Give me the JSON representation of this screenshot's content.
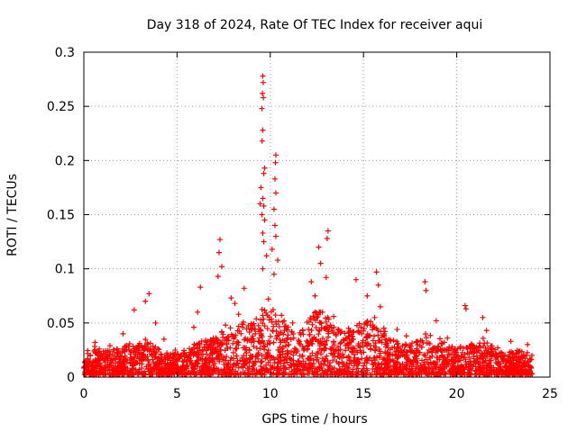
{
  "chart_data": {
    "type": "scatter",
    "title": "Day 318 of 2024, Rate Of TEC Index for receiver aqui",
    "xlabel": "GPS time / hours",
    "ylabel": "ROTI / TECUs",
    "xlim": [
      0,
      25
    ],
    "ylim": [
      0,
      0.3
    ],
    "xticks": [
      0,
      5,
      10,
      15,
      20,
      25
    ],
    "xtick_labels": [
      "0",
      "5",
      "10",
      "15",
      "20",
      "25"
    ],
    "yticks": [
      0,
      0.05,
      0.1,
      0.15,
      0.2,
      0.25,
      0.3
    ],
    "ytick_labels": [
      "0",
      "0.05",
      "0.1",
      "0.15",
      "0.2",
      "0.25",
      "0.3"
    ],
    "grid": true,
    "marker": "+",
    "color": "#ff0000",
    "series": [
      {
        "name": "ROTI",
        "points": [
          [
            9.6,
            0.278
          ],
          [
            9.62,
            0.272
          ],
          [
            9.58,
            0.262
          ],
          [
            9.63,
            0.258
          ],
          [
            9.55,
            0.248
          ],
          [
            9.6,
            0.228
          ],
          [
            9.56,
            0.218
          ],
          [
            10.3,
            0.205
          ],
          [
            10.28,
            0.198
          ],
          [
            9.7,
            0.193
          ],
          [
            9.65,
            0.188
          ],
          [
            10.25,
            0.183
          ],
          [
            9.5,
            0.175
          ],
          [
            10.3,
            0.17
          ],
          [
            9.6,
            0.165
          ],
          [
            9.45,
            0.16
          ],
          [
            9.65,
            0.158
          ],
          [
            10.2,
            0.155
          ],
          [
            9.55,
            0.15
          ],
          [
            9.7,
            0.145
          ],
          [
            10.25,
            0.14
          ],
          [
            9.6,
            0.133
          ],
          [
            10.3,
            0.13
          ],
          [
            13.1,
            0.135
          ],
          [
            13.05,
            0.128
          ],
          [
            7.3,
            0.127
          ],
          [
            9.65,
            0.125
          ],
          [
            12.6,
            0.12
          ],
          [
            10.1,
            0.118
          ],
          [
            7.25,
            0.115
          ],
          [
            9.8,
            0.112
          ],
          [
            10.4,
            0.108
          ],
          [
            12.7,
            0.105
          ],
          [
            7.4,
            0.102
          ],
          [
            9.6,
            0.1
          ],
          [
            15.7,
            0.097
          ],
          [
            10.2,
            0.095
          ],
          [
            7.2,
            0.093
          ],
          [
            13.0,
            0.092
          ],
          [
            14.6,
            0.09
          ],
          [
            12.2,
            0.088
          ],
          [
            18.3,
            0.088
          ],
          [
            15.8,
            0.085
          ],
          [
            6.25,
            0.083
          ],
          [
            8.6,
            0.082
          ],
          [
            18.35,
            0.08
          ],
          [
            3.5,
            0.077
          ],
          [
            15.2,
            0.075
          ],
          [
            12.4,
            0.075
          ],
          [
            7.9,
            0.073
          ],
          [
            9.9,
            0.072
          ],
          [
            3.3,
            0.07
          ],
          [
            8.1,
            0.068
          ],
          [
            20.45,
            0.066
          ],
          [
            15.9,
            0.065
          ],
          [
            20.5,
            0.063
          ],
          [
            2.7,
            0.062
          ],
          [
            6.1,
            0.06
          ],
          [
            12.8,
            0.06
          ],
          [
            8.3,
            0.058
          ],
          [
            10.6,
            0.057
          ],
          [
            13.4,
            0.056
          ],
          [
            15.6,
            0.055
          ],
          [
            21.4,
            0.055
          ],
          [
            18.9,
            0.052
          ],
          [
            3.85,
            0.05
          ],
          [
            11.2,
            0.05
          ],
          [
            7.6,
            0.048
          ],
          [
            5.9,
            0.046
          ],
          [
            14.2,
            0.045
          ],
          [
            16.8,
            0.044
          ],
          [
            21.6,
            0.043
          ],
          [
            2.1,
            0.04
          ],
          [
            9.2,
            0.04
          ],
          [
            12.1,
            0.039
          ],
          [
            17.3,
            0.038
          ],
          [
            19.5,
            0.036
          ],
          [
            4.3,
            0.035
          ],
          [
            22.9,
            0.033
          ],
          [
            0.6,
            0.032
          ],
          [
            23.8,
            0.03
          ],
          [
            1.4,
            0.029
          ],
          [
            6.8,
            0.028
          ],
          [
            16.2,
            0.028
          ],
          [
            22.2,
            0.027
          ],
          [
            4.9,
            0.025
          ],
          [
            19.9,
            0.025
          ],
          [
            11.6,
            0.03
          ],
          [
            13.8,
            0.032
          ],
          [
            14.9,
            0.04
          ]
        ],
        "density_profile": [
          [
            0,
            0.022
          ],
          [
            0.5,
            0.028
          ],
          [
            1,
            0.022
          ],
          [
            1.5,
            0.024
          ],
          [
            2,
            0.026
          ],
          [
            2.5,
            0.03
          ],
          [
            3,
            0.03
          ],
          [
            3.5,
            0.035
          ],
          [
            4,
            0.024
          ],
          [
            4.5,
            0.02
          ],
          [
            5,
            0.02
          ],
          [
            5.5,
            0.024
          ],
          [
            6,
            0.03
          ],
          [
            6.5,
            0.032
          ],
          [
            7,
            0.035
          ],
          [
            7.5,
            0.045
          ],
          [
            8,
            0.045
          ],
          [
            8.5,
            0.05
          ],
          [
            9,
            0.05
          ],
          [
            9.5,
            0.06
          ],
          [
            10,
            0.065
          ],
          [
            10.5,
            0.055
          ],
          [
            11,
            0.045
          ],
          [
            11.5,
            0.04
          ],
          [
            12,
            0.05
          ],
          [
            12.5,
            0.06
          ],
          [
            13,
            0.055
          ],
          [
            13.5,
            0.045
          ],
          [
            14,
            0.04
          ],
          [
            14.5,
            0.045
          ],
          [
            15,
            0.05
          ],
          [
            15.5,
            0.05
          ],
          [
            16,
            0.045
          ],
          [
            16.5,
            0.035
          ],
          [
            17,
            0.03
          ],
          [
            17.5,
            0.028
          ],
          [
            18,
            0.035
          ],
          [
            18.5,
            0.04
          ],
          [
            19,
            0.035
          ],
          [
            19.5,
            0.028
          ],
          [
            20,
            0.025
          ],
          [
            20.5,
            0.03
          ],
          [
            21,
            0.028
          ],
          [
            21.5,
            0.035
          ],
          [
            22,
            0.025
          ],
          [
            22.5,
            0.022
          ],
          [
            23,
            0.022
          ],
          [
            23.5,
            0.024
          ],
          [
            24,
            0.02
          ]
        ]
      }
    ]
  }
}
